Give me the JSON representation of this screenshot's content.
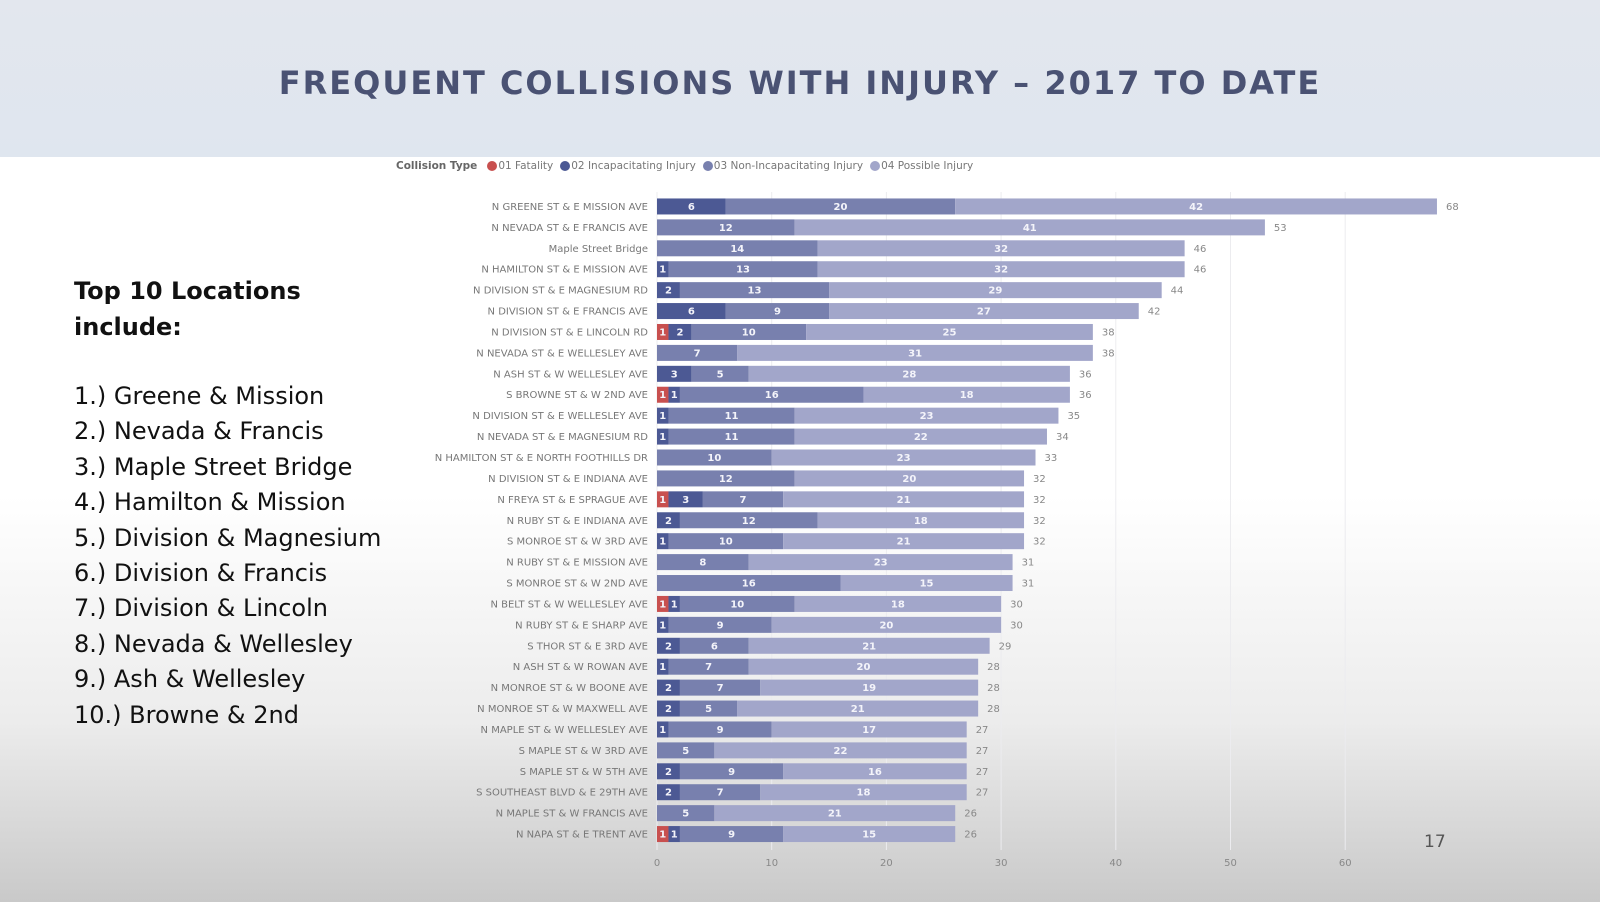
{
  "slide": {
    "title": "FREQUENT COLLISIONS WITH INJURY – 2017 TO DATE",
    "page_number": "17",
    "left_panel": {
      "heading": "Top 10 Locations include:",
      "items": [
        "1.) Greene & Mission",
        "2.) Nevada & Francis",
        "3.) Maple Street Bridge",
        "4.) Hamilton & Mission",
        "5.) Division & Magnesium",
        "6.) Division & Francis",
        "7.) Division & Lincoln",
        "8.) Nevada & Wellesley",
        "9.) Ash & Wellesley",
        "10.) Browne & 2nd"
      ]
    }
  },
  "chart_data": {
    "type": "bar",
    "orientation": "horizontal",
    "stacked": true,
    "title": "",
    "xlabel": "",
    "ylabel": "",
    "xlim": [
      0,
      68
    ],
    "xticks": [
      0,
      10,
      20,
      30,
      40,
      50,
      60
    ],
    "grid": true,
    "legend": {
      "title": "Collision Type",
      "position": "top-left",
      "entries": [
        "01 Fatality",
        "02 Incapacitating Injury",
        "03 Non-Incapacitating Injury",
        "04 Possible Injury"
      ]
    },
    "colors": [
      "#c8504f",
      "#4c5994",
      "#7880ae",
      "#a2a6ca"
    ],
    "categories": [
      "N GREENE ST & E MISSION AVE",
      "N NEVADA ST & E FRANCIS AVE",
      "Maple Street Bridge",
      "N HAMILTON ST & E MISSION AVE",
      "N DIVISION ST & E MAGNESIUM RD",
      "N DIVISION ST & E FRANCIS AVE",
      "N DIVISION ST & E LINCOLN RD",
      "N NEVADA ST & E WELLESLEY AVE",
      "N ASH ST & W WELLESLEY AVE",
      "S BROWNE ST & W 2ND AVE",
      "N DIVISION ST & E WELLESLEY AVE",
      "N NEVADA ST & E MAGNESIUM RD",
      "N HAMILTON ST & E NORTH FOOTHILLS DR",
      "N DIVISION ST & E INDIANA AVE",
      "N FREYA ST & E SPRAGUE AVE",
      "N RUBY ST & E INDIANA AVE",
      "S MONROE ST & W 3RD AVE",
      "N RUBY ST & E MISSION AVE",
      "S MONROE ST & W 2ND AVE",
      "N BELT ST & W WELLESLEY AVE",
      "N RUBY ST & E SHARP AVE",
      "S THOR ST & E 3RD AVE",
      "N ASH ST & W ROWAN AVE",
      "N MONROE ST & W BOONE AVE",
      "N MONROE ST & W MAXWELL AVE",
      "N MAPLE ST & W WELLESLEY AVE",
      "S MAPLE ST & W 3RD AVE",
      "S MAPLE ST & W 5TH AVE",
      "S SOUTHEAST BLVD & E 29TH AVE",
      "N MAPLE ST & W FRANCIS AVE",
      "N NAPA ST & E TRENT AVE"
    ],
    "series": [
      {
        "name": "01 Fatality",
        "values": [
          0,
          0,
          0,
          0,
          0,
          0,
          1,
          0,
          0,
          1,
          0,
          0,
          0,
          0,
          1,
          0,
          0,
          0,
          0,
          1,
          0,
          0,
          0,
          0,
          0,
          0,
          0,
          0,
          0,
          0,
          1
        ]
      },
      {
        "name": "02 Incapacitating Injury",
        "values": [
          6,
          0,
          0,
          1,
          2,
          6,
          2,
          0,
          3,
          1,
          1,
          1,
          0,
          0,
          3,
          2,
          1,
          0,
          0,
          1,
          1,
          2,
          1,
          2,
          2,
          1,
          0,
          2,
          2,
          0,
          1
        ]
      },
      {
        "name": "03 Non-Incapacitating Injury",
        "values": [
          20,
          12,
          14,
          13,
          13,
          9,
          10,
          7,
          5,
          16,
          11,
          11,
          10,
          12,
          7,
          12,
          10,
          8,
          16,
          10,
          9,
          6,
          7,
          7,
          5,
          9,
          5,
          9,
          7,
          5,
          9
        ]
      },
      {
        "name": "04 Possible Injury",
        "values": [
          42,
          41,
          32,
          32,
          29,
          27,
          25,
          31,
          28,
          18,
          23,
          22,
          23,
          20,
          21,
          18,
          21,
          23,
          15,
          18,
          20,
          21,
          20,
          19,
          21,
          17,
          22,
          16,
          18,
          21,
          15
        ]
      }
    ],
    "totals": [
      68,
      53,
      46,
      46,
      44,
      42,
      38,
      38,
      36,
      36,
      35,
      34,
      33,
      32,
      32,
      32,
      32,
      31,
      31,
      30,
      30,
      29,
      28,
      28,
      28,
      27,
      27,
      27,
      27,
      26,
      26
    ]
  }
}
